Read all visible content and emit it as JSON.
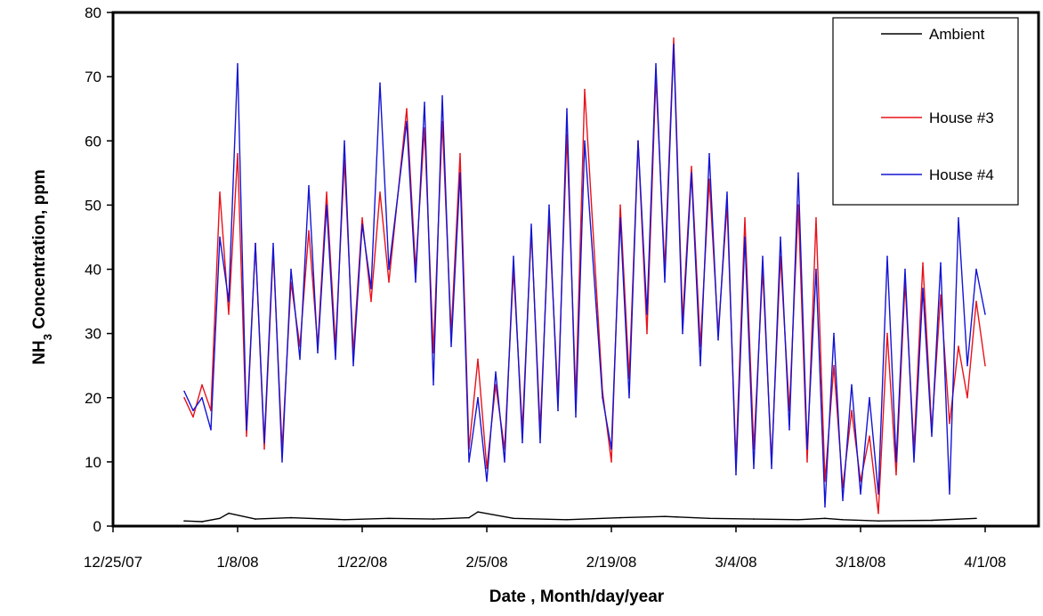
{
  "chart_data": {
    "type": "line",
    "title": "",
    "xlabel": "Date ,  Month/day/year",
    "ylabel_main": "NH",
    "ylabel_sub": "3",
    "ylabel_rest": " Concentration,  ppm",
    "x_ticks": [
      "12/25/07",
      "1/8/08",
      "1/22/08",
      "2/5/08",
      "2/19/08",
      "3/4/08",
      "3/18/08",
      "4/1/08"
    ],
    "y_ticks": [
      "0",
      "10",
      "20",
      "30",
      "40",
      "50",
      "60",
      "70",
      "80"
    ],
    "xlim": [
      "12/25/07",
      "4/7/08"
    ],
    "ylim": [
      0,
      80
    ],
    "grid": false,
    "legend_position": "top-right",
    "series": [
      {
        "name": "Ambient",
        "color": "#000000",
        "x": [
          "1/2/08",
          "1/4/08",
          "1/6/08",
          "1/7/08",
          "1/10/08",
          "1/14/08",
          "1/20/08",
          "1/25/08",
          "1/30/08",
          "2/3/08",
          "2/4/08",
          "2/8/08",
          "2/14/08",
          "2/20/08",
          "2/25/08",
          "3/1/08",
          "3/6/08",
          "3/11/08",
          "3/14/08",
          "3/16/08",
          "3/20/08",
          "3/26/08",
          "3/31/08"
        ],
        "y": [
          0.8,
          0.7,
          1.2,
          2.0,
          1.1,
          1.3,
          1.0,
          1.2,
          1.1,
          1.3,
          2.2,
          1.2,
          1.0,
          1.3,
          1.5,
          1.2,
          1.1,
          1.0,
          1.2,
          1.0,
          0.8,
          0.9,
          1.2
        ]
      },
      {
        "name": "House #3",
        "color": "#e8121a",
        "x": [
          "1/2/08",
          "1/3/08",
          "1/4/08",
          "1/5/08",
          "1/6/08",
          "1/7/08",
          "1/8/08",
          "1/9/08",
          "1/10/08",
          "1/11/08",
          "1/12/08",
          "1/13/08",
          "1/14/08",
          "1/15/08",
          "1/16/08",
          "1/17/08",
          "1/18/08",
          "1/19/08",
          "1/20/08",
          "1/21/08",
          "1/22/08",
          "1/23/08",
          "1/24/08",
          "1/25/08",
          "1/27/08",
          "1/28/08",
          "1/29/08",
          "1/30/08",
          "1/31/08",
          "2/1/08",
          "2/2/08",
          "2/3/08",
          "2/4/08",
          "2/5/08",
          "2/6/08",
          "2/7/08",
          "2/8/08",
          "2/9/08",
          "2/10/08",
          "2/11/08",
          "2/12/08",
          "2/13/08",
          "2/14/08",
          "2/15/08",
          "2/16/08",
          "2/18/08",
          "2/19/08",
          "2/20/08",
          "2/21/08",
          "2/22/08",
          "2/23/08",
          "2/24/08",
          "2/25/08",
          "2/26/08",
          "2/27/08",
          "2/28/08",
          "2/29/08",
          "3/1/08",
          "3/2/08",
          "3/3/08",
          "3/4/08",
          "3/5/08",
          "3/6/08",
          "3/7/08",
          "3/8/08",
          "3/9/08",
          "3/10/08",
          "3/11/08",
          "3/12/08",
          "3/13/08",
          "3/14/08",
          "3/15/08",
          "3/16/08",
          "3/17/08",
          "3/18/08",
          "3/19/08",
          "3/20/08",
          "3/21/08",
          "3/22/08",
          "3/23/08",
          "3/24/08",
          "3/25/08",
          "3/26/08",
          "3/27/08",
          "3/28/08",
          "3/29/08",
          "3/30/08",
          "3/31/08",
          "4/1/08"
        ],
        "y": [
          20,
          17,
          22,
          18,
          52,
          33,
          58,
          14,
          44,
          12,
          43,
          12,
          38,
          28,
          46,
          28,
          52,
          28,
          57,
          27,
          48,
          35,
          52,
          38,
          65,
          40,
          62,
          27,
          63,
          30,
          58,
          12,
          26,
          9,
          22,
          12,
          40,
          15,
          46,
          15,
          48,
          20,
          61,
          20,
          68,
          21,
          10,
          50,
          23,
          60,
          30,
          70,
          40,
          76,
          32,
          56,
          28,
          54,
          30,
          50,
          10,
          48,
          12,
          40,
          10,
          42,
          18,
          50,
          10,
          48,
          7,
          25,
          6,
          18,
          7,
          14,
          2,
          30,
          8,
          38,
          12,
          41,
          15,
          36,
          16,
          28,
          20,
          35,
          25
        ]
      },
      {
        "name": "House #4",
        "color": "#1414d4",
        "x": [
          "1/2/08",
          "1/3/08",
          "1/4/08",
          "1/5/08",
          "1/6/08",
          "1/7/08",
          "1/8/08",
          "1/9/08",
          "1/10/08",
          "1/11/08",
          "1/12/08",
          "1/13/08",
          "1/14/08",
          "1/15/08",
          "1/16/08",
          "1/17/08",
          "1/18/08",
          "1/19/08",
          "1/20/08",
          "1/21/08",
          "1/22/08",
          "1/23/08",
          "1/24/08",
          "1/25/08",
          "1/27/08",
          "1/28/08",
          "1/29/08",
          "1/30/08",
          "1/31/08",
          "2/1/08",
          "2/2/08",
          "2/3/08",
          "2/4/08",
          "2/5/08",
          "2/6/08",
          "2/7/08",
          "2/8/08",
          "2/9/08",
          "2/10/08",
          "2/11/08",
          "2/12/08",
          "2/13/08",
          "2/14/08",
          "2/15/08",
          "2/16/08",
          "2/18/08",
          "2/19/08",
          "2/20/08",
          "2/21/08",
          "2/22/08",
          "2/23/08",
          "2/24/08",
          "2/25/08",
          "2/26/08",
          "2/27/08",
          "2/28/08",
          "2/29/08",
          "3/1/08",
          "3/2/08",
          "3/3/08",
          "3/4/08",
          "3/5/08",
          "3/6/08",
          "3/7/08",
          "3/8/08",
          "3/9/08",
          "3/10/08",
          "3/11/08",
          "3/12/08",
          "3/13/08",
          "3/14/08",
          "3/15/08",
          "3/16/08",
          "3/17/08",
          "3/18/08",
          "3/19/08",
          "3/20/08",
          "3/21/08",
          "3/22/08",
          "3/23/08",
          "3/24/08",
          "3/25/08",
          "3/26/08",
          "3/27/08",
          "3/28/08",
          "3/29/08",
          "3/30/08",
          "3/31/08",
          "4/1/08"
        ],
        "y": [
          21,
          18,
          20,
          15,
          45,
          35,
          72,
          15,
          44,
          13,
          44,
          10,
          40,
          26,
          53,
          27,
          50,
          26,
          60,
          25,
          47,
          37,
          69,
          40,
          63,
          38,
          66,
          22,
          67,
          28,
          55,
          10,
          20,
          7,
          24,
          10,
          42,
          13,
          47,
          13,
          50,
          18,
          65,
          17,
          60,
          20,
          12,
          48,
          20,
          60,
          33,
          72,
          38,
          75,
          30,
          55,
          25,
          58,
          29,
          52,
          8,
          45,
          9,
          42,
          9,
          45,
          15,
          55,
          12,
          40,
          3,
          30,
          4,
          22,
          5,
          20,
          5,
          42,
          10,
          40,
          10,
          37,
          14,
          41,
          5,
          48,
          25,
          40,
          33
        ]
      }
    ]
  }
}
